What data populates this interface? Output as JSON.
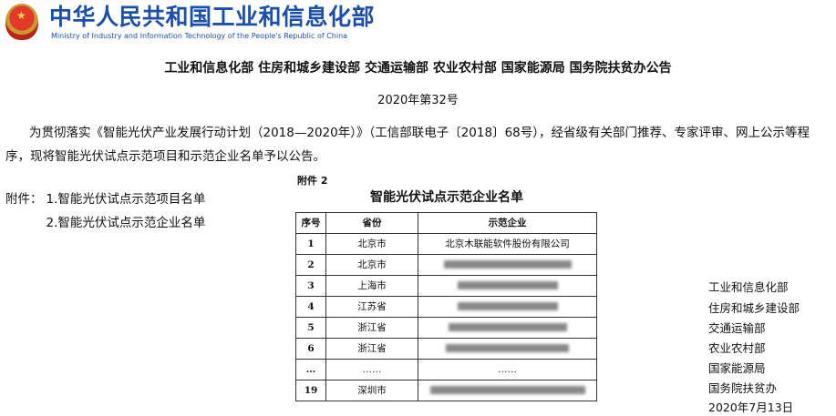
{
  "header": {
    "logo_cn": "中华人民共和国工业和信息化部",
    "logo_en": "Ministry of Industry and Information Technology of the People's Republic of China"
  },
  "notice": {
    "title": "工业和信息化部 住房和城乡建设部 交通运输部 农业农村部 国家能源局 国务院扶贫办公告",
    "number": "2020年第32号",
    "body": "为贯彻落实《智能光伏产业发展行动计划（2018—2020年）》（工信部联电子〔2018〕68号），经省级有关部门推荐、专家评审、网上公示等程序，现将智能光伏试点示范项目和示范企业名单予以公告。",
    "attachments_label": "附件：",
    "attachments": [
      "1.智能光伏试点示范项目名单",
      "2.智能光伏试点示范企业名单"
    ],
    "signatories": [
      "工业和信息化部",
      "住房和城乡建设部",
      "交通运输部",
      "农业农村部",
      "国家能源局",
      "国务院扶贫办"
    ],
    "date": "2020年7月13日"
  },
  "image": {
    "label": "附件 2",
    "title": "智能光伏试点示范企业名单",
    "columns": [
      "序号",
      "省份",
      "示范企业"
    ],
    "rows": [
      {
        "no": "1",
        "province": "北京市",
        "company": "北京木联能软件股份有限公司"
      },
      {
        "no": "2",
        "province": "北京市",
        "company": ""
      },
      {
        "no": "3",
        "province": "上海市",
        "company": ""
      },
      {
        "no": "4",
        "province": "江苏省",
        "company": ""
      },
      {
        "no": "5",
        "province": "浙江省",
        "company": ""
      },
      {
        "no": "6",
        "province": "浙江省",
        "company": ""
      },
      {
        "no": "…",
        "province": "……",
        "company": "……"
      },
      {
        "no": "19",
        "province": "深圳市",
        "company": ""
      }
    ]
  }
}
